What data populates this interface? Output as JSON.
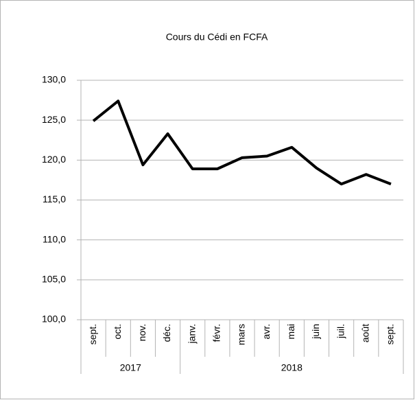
{
  "chart_data": {
    "type": "line",
    "title": "Cours du Cédi en FCFA",
    "categories": [
      "sept.",
      "oct.",
      "nov.",
      "déc.",
      "janv.",
      "févr.",
      "mars",
      "avr.",
      "mai",
      "juin",
      "juil.",
      "août",
      "sept."
    ],
    "groups": [
      {
        "name": "2017",
        "count": 4
      },
      {
        "name": "2018",
        "count": 9
      }
    ],
    "series": [
      {
        "name": "Cours du Cédi en FCFA",
        "color": "#000000",
        "values": [
          124.9,
          127.4,
          119.4,
          123.3,
          118.9,
          118.9,
          120.3,
          120.5,
          121.6,
          119.0,
          117.0,
          118.2,
          117.0
        ]
      }
    ],
    "ylim": [
      100,
      130
    ],
    "yticks": [
      {
        "value": 100,
        "label": "100,0"
      },
      {
        "value": 105,
        "label": "105,0"
      },
      {
        "value": 110,
        "label": "110,0"
      },
      {
        "value": 115,
        "label": "115,0"
      },
      {
        "value": 120,
        "label": "120,0"
      },
      {
        "value": 125,
        "label": "125,0"
      },
      {
        "value": 130,
        "label": "130,0"
      }
    ],
    "grid": true
  }
}
